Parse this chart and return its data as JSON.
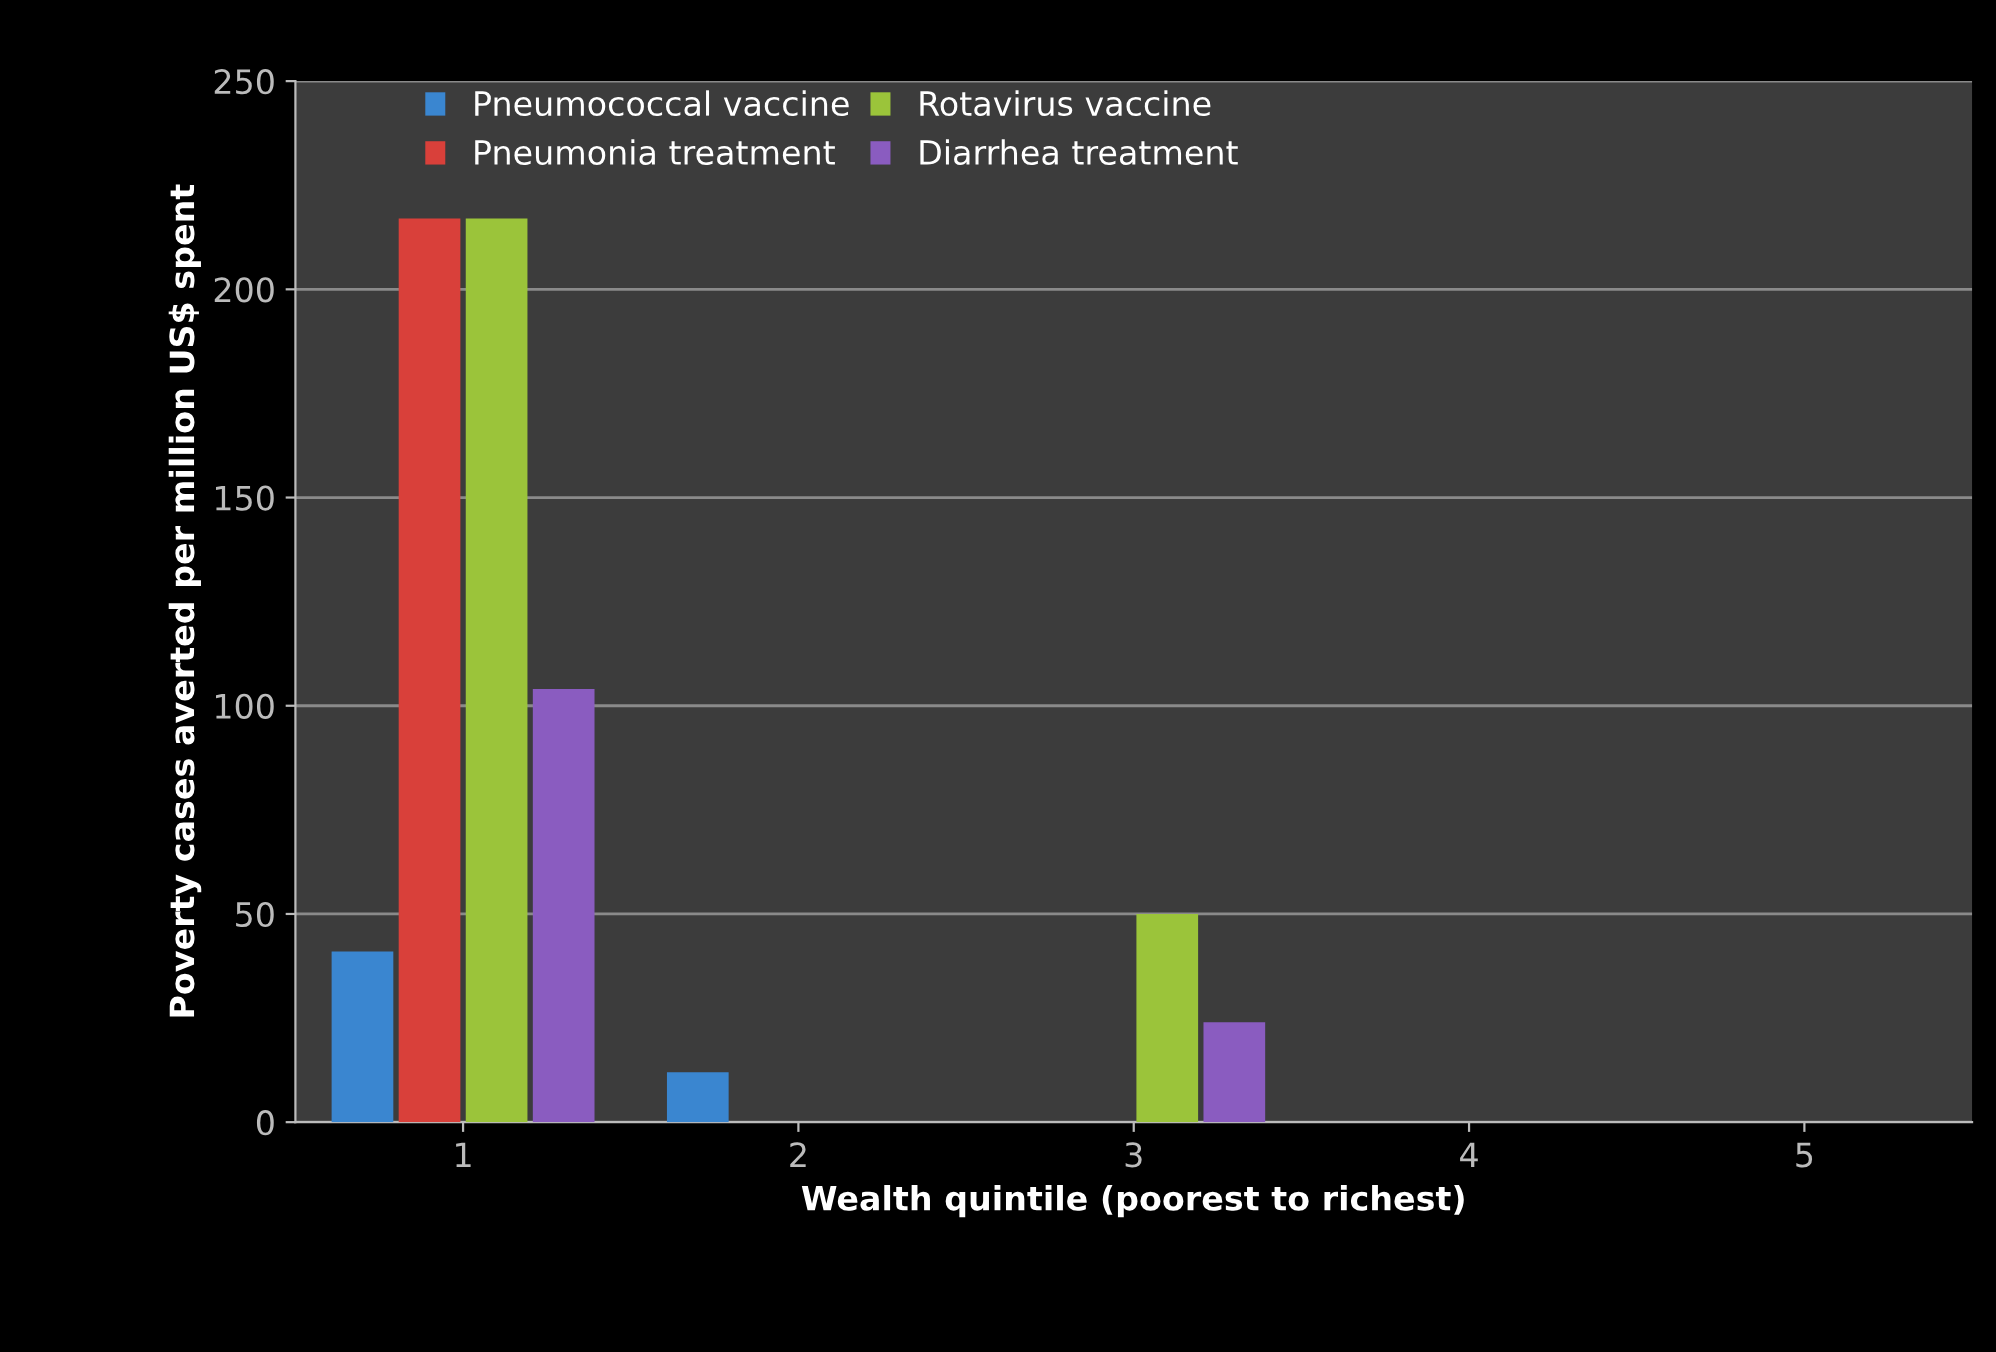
{
  "chart_data": {
    "type": "bar",
    "xlabel": "Wealth quintile (poorest to richest)",
    "ylabel": "Poverty cases averted per million US$ spent",
    "categories": [
      "1",
      "2",
      "3",
      "4",
      "5"
    ],
    "series": [
      {
        "name": "Pneumococcal vaccine",
        "color": "#3a86d0",
        "values": [
          41,
          12,
          0,
          0,
          0
        ]
      },
      {
        "name": "Pneumonia treatment",
        "color": "#d9403a",
        "values": [
          217,
          0,
          0,
          0,
          0
        ]
      },
      {
        "name": "Rotavirus vaccine",
        "color": "#9bc43a",
        "values": [
          217,
          0,
          50,
          0,
          0
        ]
      },
      {
        "name": "Diarrhea treatment",
        "color": "#8a5cc0",
        "values": [
          104,
          0,
          24,
          0,
          0
        ]
      }
    ],
    "ylim": [
      0,
      250
    ],
    "yticks": [
      0,
      50,
      100,
      150,
      200,
      250
    ],
    "grid": "y",
    "legend": "top"
  }
}
